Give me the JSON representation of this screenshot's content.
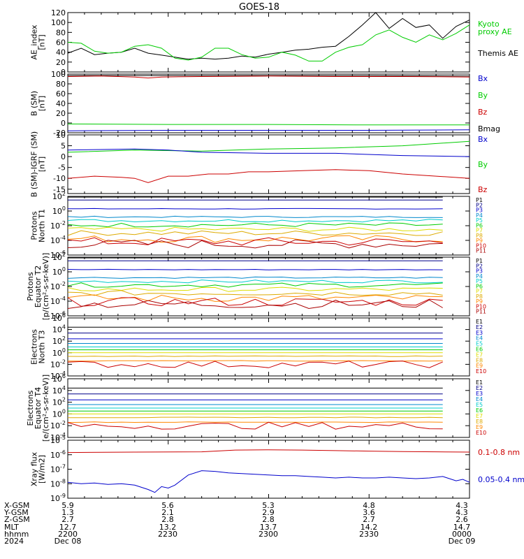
{
  "title": "GOES-18",
  "colors": {
    "black": "#000000",
    "red": "#cc0000",
    "green": "#00cc00",
    "blue": "#0000cc",
    "navy": "#000088",
    "teal": "#00aaaa",
    "cyan": "#00cccc",
    "yellow": "#dddd00",
    "orange": "#ff8800",
    "darkred": "#aa0000"
  },
  "chart_data": [
    {
      "type": "line",
      "name": "ae",
      "ylabel": [
        "AE_index",
        "[nT]"
      ],
      "ylim": [
        0,
        120
      ],
      "ticks": [
        "0",
        "20",
        "40",
        "60",
        "80",
        "100",
        "120"
      ],
      "tick_values": [
        0,
        20,
        40,
        60,
        80,
        100,
        120
      ],
      "legend": [
        {
          "text": "Kyoto",
          "color": "#00cc00"
        },
        {
          "text": "proxy AE",
          "color": "#00cc00"
        },
        {
          "text": "Themis AE",
          "color": "#000000"
        }
      ],
      "series": [
        {
          "name": "Themis AE",
          "color": "#000000",
          "x": [
            0,
            4,
            8,
            12,
            16,
            20,
            24,
            28,
            32,
            36,
            40,
            44,
            48,
            52,
            56,
            60,
            64,
            68,
            72,
            76,
            80,
            84,
            88,
            92,
            96,
            100,
            104,
            108,
            112,
            116,
            120
          ],
          "y": [
            38,
            48,
            35,
            38,
            40,
            48,
            38,
            34,
            30,
            26,
            28,
            26,
            28,
            32,
            30,
            36,
            40,
            44,
            46,
            50,
            52,
            72,
            95,
            120,
            88,
            108,
            90,
            95,
            68,
            92,
            105
          ]
        },
        {
          "name": "Kyoto proxy AE",
          "color": "#00cc00",
          "x": [
            0,
            4,
            8,
            12,
            16,
            20,
            24,
            28,
            32,
            36,
            40,
            44,
            48,
            52,
            56,
            60,
            64,
            68,
            72,
            76,
            80,
            84,
            88,
            92,
            96,
            100,
            104,
            108,
            112,
            116,
            120
          ],
          "y": [
            60,
            58,
            42,
            38,
            40,
            52,
            55,
            48,
            28,
            24,
            30,
            48,
            48,
            35,
            28,
            30,
            40,
            34,
            22,
            22,
            40,
            50,
            55,
            75,
            85,
            70,
            60,
            75,
            65,
            78,
            95
          ]
        }
      ]
    },
    {
      "type": "line",
      "name": "bsm",
      "ylabel": [
        "B (SM)",
        "[nT]"
      ],
      "ylim": [
        -20,
        100
      ],
      "ticks": [
        "-20",
        "0",
        "20",
        "40",
        "60",
        "80",
        "100"
      ],
      "tick_values": [
        -20,
        0,
        20,
        40,
        60,
        80,
        100
      ],
      "legend": [
        {
          "text": "Bx",
          "color": "#0000cc"
        },
        {
          "text": "By",
          "color": "#00cc00"
        },
        {
          "text": "Bz",
          "color": "#cc0000"
        },
        {
          "text": "Bmag",
          "color": "#000000"
        }
      ],
      "series": [
        {
          "name": "Bmag",
          "color": "#000000",
          "x": [
            0,
            30,
            60,
            90,
            120
          ],
          "y": [
            97,
            97,
            97,
            97,
            96
          ]
        },
        {
          "name": "Bz",
          "color": "#cc0000",
          "x": [
            0,
            10,
            20,
            24,
            28,
            40,
            60,
            80,
            100,
            120
          ],
          "y": [
            95,
            96,
            94,
            92,
            94,
            95,
            96,
            95,
            95,
            94
          ]
        },
        {
          "name": "By",
          "color": "#00cc00",
          "x": [
            0,
            30,
            60,
            90,
            120
          ],
          "y": [
            -2,
            -3,
            -3,
            -4,
            -4
          ]
        },
        {
          "name": "Bx",
          "color": "#0000cc",
          "x": [
            0,
            30,
            60,
            90,
            120
          ],
          "y": [
            -16,
            -15,
            -15,
            -15,
            -14
          ]
        }
      ]
    },
    {
      "type": "line",
      "name": "bigrf",
      "ylabel": [
        "B (SM)-IGRF (SM)",
        "[nT]"
      ],
      "ylim": [
        -17,
        10
      ],
      "ticks": [
        "-15",
        "-10",
        "-5",
        "0",
        "5",
        "10"
      ],
      "tick_values": [
        -15,
        -10,
        -5,
        0,
        5,
        10
      ],
      "legend": [
        {
          "text": "Bx",
          "color": "#0000cc"
        },
        {
          "text": "By",
          "color": "#00cc00"
        },
        {
          "text": "Bz",
          "color": "#cc0000"
        }
      ],
      "series": [
        {
          "name": "By",
          "color": "#00cc00",
          "x": [
            0,
            20,
            40,
            60,
            80,
            100,
            120
          ],
          "y": [
            2,
            3,
            2.5,
            3.5,
            4,
            5,
            7
          ]
        },
        {
          "name": "Bx",
          "color": "#0000cc",
          "x": [
            0,
            20,
            30,
            40,
            60,
            80,
            100,
            120
          ],
          "y": [
            3,
            3.5,
            3,
            2,
            1.5,
            1.5,
            0.5,
            0
          ]
        },
        {
          "name": "Bz",
          "color": "#cc0000",
          "x": [
            0,
            8,
            16,
            20,
            24,
            30,
            36,
            42,
            48,
            54,
            60,
            70,
            80,
            90,
            100,
            110,
            120
          ],
          "y": [
            -10,
            -9,
            -9.5,
            -10,
            -12,
            -9,
            -9,
            -8,
            -8,
            -7,
            -7,
            -6.5,
            -6,
            -6.5,
            -8,
            -9,
            -10
          ]
        }
      ]
    },
    {
      "type": "line",
      "name": "protons_t1",
      "log": true,
      "ylabel": [
        "Protons",
        "North T1"
      ],
      "ylim": [
        -6,
        2
      ],
      "ticks": [
        "10-6",
        "10-4",
        "10-2",
        "100",
        "102"
      ],
      "tick_exps": [
        -6,
        -4,
        -2,
        0,
        2
      ],
      "legend_labels": [
        "P1",
        "P2",
        "P3",
        "P4",
        "P5",
        "P6",
        "P7",
        "P8",
        "P9",
        "P10",
        "P11"
      ],
      "legend_colors": [
        "#000000",
        "#000088",
        "#0000cc",
        "#0088cc",
        "#00cccc",
        "#00cc00",
        "#dddd00",
        "#ddaa00",
        "#ff8800",
        "#cc0000",
        "#aa0000"
      ],
      "levels": [
        1.9,
        1.5,
        0.3,
        -0.8,
        -1.3,
        -1.9,
        -2.5,
        -3,
        -3.8,
        -4.2,
        -4.5
      ],
      "noise": [
        0,
        0,
        0.05,
        0.1,
        0.2,
        0.3,
        0.3,
        0.35,
        0.5,
        0.6,
        0.6
      ]
    },
    {
      "type": "line",
      "name": "protons_t2",
      "log": true,
      "ylabel": [
        "Protons",
        "Equator T2",
        "[p/(cm²-s-sr-keV)]"
      ],
      "ylim": [
        -6,
        2
      ],
      "ticks": [
        "10-6",
        "10-4",
        "10-2",
        "100",
        "102"
      ],
      "tick_exps": [
        -6,
        -4,
        -2,
        0,
        2
      ],
      "legend_labels": [
        "P1",
        "P2",
        "P3",
        "P4",
        "P5",
        "P6",
        "P7",
        "P8",
        "P9",
        "P10",
        "P11"
      ],
      "legend_colors": [
        "#000000",
        "#000088",
        "#0000cc",
        "#0088cc",
        "#00cccc",
        "#00cc00",
        "#dddd00",
        "#ddaa00",
        "#ff8800",
        "#cc0000",
        "#aa0000"
      ],
      "levels": [
        1.9,
        1.5,
        0.3,
        -0.8,
        -1.3,
        -1.8,
        -2.4,
        -2.9,
        -3.6,
        -4.1,
        -4.4
      ],
      "noise": [
        0,
        0,
        0.05,
        0.1,
        0.2,
        0.3,
        0.3,
        0.35,
        0.5,
        0.6,
        0.6
      ]
    },
    {
      "type": "line",
      "name": "electrons_t3",
      "log": true,
      "ylabel": [
        "Electrons",
        "North T3"
      ],
      "ylim": [
        -4,
        6
      ],
      "ticks": [
        "10-4",
        "10-2",
        "100",
        "102",
        "104",
        "106"
      ],
      "tick_exps": [
        -4,
        -2,
        0,
        2,
        4,
        6
      ],
      "legend_labels": [
        "E1",
        "E2",
        "E3",
        "E4",
        "E5",
        "E6",
        "E7",
        "E8",
        "E9",
        "E10"
      ],
      "legend_colors": [
        "#000000",
        "#000088",
        "#0000cc",
        "#0088cc",
        "#00cccc",
        "#00cc00",
        "#dddd00",
        "#ddaa00",
        "#ff8800",
        "#cc0000"
      ],
      "levels": [
        4.4,
        3.4,
        2.4,
        1.6,
        1.0,
        0.5,
        0,
        -0.6,
        -1.4,
        -2.0
      ],
      "noise": [
        0,
        0,
        0,
        0,
        0,
        0,
        0,
        0.05,
        0.05,
        0.6
      ]
    },
    {
      "type": "line",
      "name": "electrons_t4",
      "log": true,
      "ylabel": [
        "Electrons",
        "Equator T4",
        "[e/(cm²-s-sr-keV)]"
      ],
      "ylim": [
        -4,
        6
      ],
      "ticks": [
        "10-4",
        "10-2",
        "100",
        "102",
        "104",
        "106"
      ],
      "tick_exps": [
        -4,
        -2,
        0,
        2,
        4,
        6
      ],
      "legend_labels": [
        "E1",
        "E2",
        "E3",
        "E4",
        "E5",
        "E6",
        "E7",
        "E8",
        "E9",
        "E10"
      ],
      "legend_colors": [
        "#000000",
        "#000088",
        "#0000cc",
        "#0088cc",
        "#00cccc",
        "#00cc00",
        "#dddd00",
        "#ddaa00",
        "#ff8800",
        "#cc0000"
      ],
      "levels": [
        4.4,
        3.4,
        2.4,
        1.6,
        1.0,
        0.5,
        0,
        -0.6,
        -1.4,
        -2.0
      ],
      "noise": [
        0,
        0,
        0,
        0,
        0,
        0,
        0,
        0.05,
        0.05,
        0.6
      ]
    },
    {
      "type": "line",
      "name": "xray",
      "log": true,
      "ylabel": [
        "Xray flux",
        "[W/m2]"
      ],
      "ylim": [
        -9,
        -5
      ],
      "ticks": [
        "10-9",
        "10-8",
        "10-7",
        "10-6",
        "10-5"
      ],
      "tick_exps": [
        -9,
        -8,
        -7,
        -6,
        -5
      ],
      "legend": [
        {
          "text": "0.1-0.8 nm",
          "color": "#cc0000"
        },
        {
          "text": "0.05-0.4 nm",
          "color": "#0000cc"
        }
      ],
      "series": [
        {
          "name": "0.1-0.8 nm",
          "color": "#cc0000",
          "x": [
            0,
            20,
            40,
            50,
            60,
            70,
            80,
            90,
            100,
            110,
            120
          ],
          "y": [
            -5.85,
            -5.82,
            -5.8,
            -5.68,
            -5.66,
            -5.68,
            -5.72,
            -5.75,
            -5.78,
            -5.8,
            -5.82
          ]
        },
        {
          "name": "0.05-0.4 nm",
          "color": "#0000cc",
          "x": [
            0,
            4,
            8,
            12,
            16,
            20,
            24,
            26,
            28,
            30,
            32,
            36,
            40,
            44,
            48,
            52,
            56,
            60,
            64,
            68,
            72,
            76,
            80,
            84,
            88,
            92,
            96,
            100,
            104,
            108,
            112,
            116,
            118,
            120
          ],
          "y": [
            -7.9,
            -8.0,
            -7.95,
            -8.05,
            -8.0,
            -8.1,
            -8.4,
            -8.6,
            -8.2,
            -8.3,
            -8.1,
            -7.4,
            -7.1,
            -7.15,
            -7.25,
            -7.3,
            -7.35,
            -7.4,
            -7.45,
            -7.45,
            -7.5,
            -7.55,
            -7.6,
            -7.55,
            -7.6,
            -7.6,
            -7.55,
            -7.6,
            -7.65,
            -7.6,
            -7.5,
            -7.8,
            -7.7,
            -7.9
          ]
        }
      ]
    }
  ],
  "xaxis": {
    "row_labels": [
      "X-GSM",
      "Y-GSM",
      "Z-GSM",
      "MLT",
      "hhmm",
      "2024"
    ],
    "columns": [
      {
        "values": [
          "5.9",
          "1.3",
          "2.7",
          "12.7",
          "2200",
          "Dec 08"
        ]
      },
      {
        "values": [
          "5.6",
          "2.1",
          "2.8",
          "13.2",
          "2230",
          ""
        ]
      },
      {
        "values": [
          "5.3",
          "2.9",
          "2.8",
          "13.7",
          "2300",
          ""
        ]
      },
      {
        "values": [
          "4.8",
          "3.6",
          "2.7",
          "14.2",
          "2330",
          ""
        ]
      },
      {
        "values": [
          "4.3",
          "4.3",
          "2.6",
          "14.7",
          "0000",
          "Dec 09"
        ]
      }
    ]
  }
}
